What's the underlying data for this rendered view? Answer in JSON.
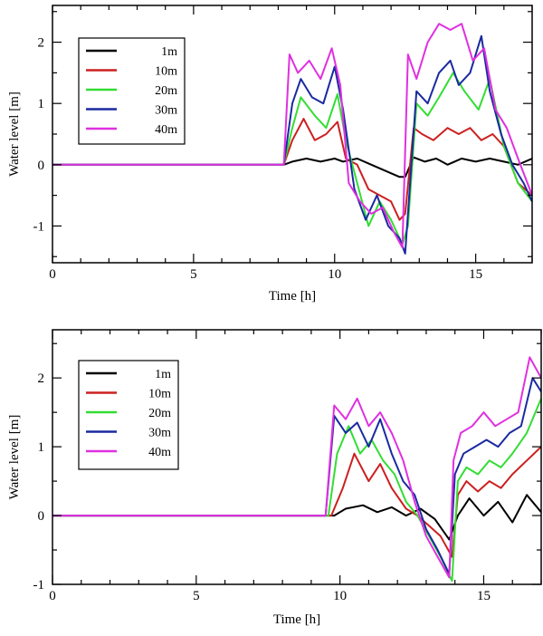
{
  "chart_data": [
    {
      "type": "line",
      "xlabel": "Time [h]",
      "ylabel": "Water level [m]",
      "xlim": [
        0,
        17
      ],
      "ylim": [
        -1.6,
        2.6
      ],
      "xticks": [
        0,
        5,
        10,
        15
      ],
      "xtick_labels": [
        "0",
        "5",
        "10",
        "15"
      ],
      "yticks": [
        -1,
        0,
        1,
        2
      ],
      "ytick_labels": [
        "-1",
        "0",
        "1",
        "2"
      ],
      "grid": false,
      "legend_position": "top-left",
      "series": [
        {
          "name": "1m",
          "color": "#000000",
          "x": [
            0,
            8.2,
            8.5,
            9,
            9.5,
            10,
            10.3,
            10.8,
            11.3,
            11.8,
            12.3,
            12.5,
            12.8,
            13.2,
            13.6,
            14,
            14.5,
            15,
            15.5,
            16,
            16.5,
            17
          ],
          "y": [
            0,
            0,
            0.05,
            0.1,
            0.05,
            0.1,
            0.05,
            0.1,
            0.0,
            -0.1,
            -0.2,
            -0.2,
            0.12,
            0.05,
            0.1,
            0.0,
            0.1,
            0.05,
            0.1,
            0.05,
            0.0,
            0.1
          ]
        },
        {
          "name": "10m",
          "color": "#cc2020",
          "x": [
            0,
            8.2,
            8.5,
            8.9,
            9.3,
            9.7,
            10.1,
            10.4,
            10.8,
            11.2,
            11.6,
            12,
            12.3,
            12.5,
            12.8,
            13.1,
            13.5,
            14,
            14.4,
            14.8,
            15.2,
            15.6,
            16,
            16.5,
            17
          ],
          "y": [
            0,
            0,
            0.4,
            0.75,
            0.4,
            0.5,
            0.7,
            0.1,
            0.0,
            -0.4,
            -0.5,
            -0.6,
            -0.9,
            -0.8,
            0.6,
            0.5,
            0.4,
            0.6,
            0.5,
            0.6,
            0.4,
            0.5,
            0.3,
            -0.3,
            -0.5
          ]
        },
        {
          "name": "20m",
          "color": "#33dd33",
          "x": [
            0,
            8.2,
            8.5,
            8.8,
            9.3,
            9.7,
            10.1,
            10.4,
            10.8,
            11.2,
            11.6,
            12,
            12.4,
            12.6,
            12.9,
            13.3,
            13.7,
            14.2,
            14.6,
            15.1,
            15.5,
            16,
            16.5,
            17
          ],
          "y": [
            0,
            0,
            0.6,
            1.1,
            0.8,
            0.6,
            1.15,
            0.4,
            -0.3,
            -1.0,
            -0.6,
            -0.9,
            -1.3,
            -1.0,
            1.0,
            0.8,
            1.1,
            1.5,
            1.2,
            0.9,
            1.4,
            0.3,
            -0.3,
            -0.6
          ]
        },
        {
          "name": "30m",
          "color": "#1a2aa0",
          "x": [
            0,
            8.2,
            8.5,
            8.8,
            9.2,
            9.6,
            10,
            10.3,
            10.7,
            11.1,
            11.5,
            11.9,
            12.3,
            12.5,
            12.9,
            13.3,
            13.7,
            14.1,
            14.4,
            14.8,
            15.2,
            15.5,
            15.9,
            16.3,
            16.7,
            17
          ],
          "y": [
            0,
            0,
            1.0,
            1.4,
            1.1,
            1.0,
            1.6,
            0.9,
            -0.4,
            -0.9,
            -0.5,
            -1.0,
            -1.2,
            -1.45,
            1.2,
            1.0,
            1.5,
            1.7,
            1.3,
            1.5,
            2.1,
            1.2,
            0.5,
            0.0,
            -0.3,
            -0.6
          ]
        },
        {
          "name": "40m",
          "color": "#e030e0",
          "x": [
            0,
            8.2,
            8.4,
            8.7,
            9.1,
            9.5,
            9.9,
            10.2,
            10.5,
            10.9,
            11.3,
            11.7,
            12.1,
            12.4,
            12.6,
            12.9,
            13.3,
            13.7,
            14.1,
            14.5,
            14.9,
            15.3,
            15.7,
            16.1,
            16.5,
            17
          ],
          "y": [
            0,
            0,
            1.8,
            1.5,
            1.7,
            1.4,
            1.9,
            1.3,
            -0.3,
            -0.6,
            -0.8,
            -0.7,
            -1.1,
            -1.35,
            1.8,
            1.4,
            2.0,
            2.3,
            2.2,
            2.3,
            1.7,
            1.9,
            0.9,
            0.6,
            0.1,
            -0.5
          ]
        }
      ]
    },
    {
      "type": "line",
      "xlabel": "Time [h]",
      "ylabel": "Water level [m]",
      "xlim": [
        0,
        17
      ],
      "ylim": [
        -1,
        2.7
      ],
      "xticks": [
        0,
        5,
        10,
        15
      ],
      "xtick_labels": [
        "0",
        "5",
        "10",
        "15"
      ],
      "yticks": [
        -1,
        0,
        1,
        2
      ],
      "ytick_labels": [
        "-1",
        "0",
        "1",
        "2"
      ],
      "grid": false,
      "legend_position": "top-left",
      "series": [
        {
          "name": "1m",
          "color": "#000000",
          "x": [
            0,
            9.8,
            10.2,
            10.8,
            11.3,
            11.8,
            12.3,
            12.8,
            13.3,
            13.8,
            14.1,
            14.5,
            15,
            15.5,
            16,
            16.5,
            17
          ],
          "y": [
            0,
            0,
            0.1,
            0.15,
            0.05,
            0.12,
            0.0,
            0.1,
            -0.05,
            -0.35,
            0.0,
            0.25,
            0.0,
            0.2,
            -0.1,
            0.3,
            0.05
          ]
        },
        {
          "name": "10m",
          "color": "#cc2020",
          "x": [
            0,
            9.7,
            10.1,
            10.5,
            11,
            11.4,
            11.8,
            12.3,
            12.7,
            13.1,
            13.5,
            13.9,
            14.1,
            14.4,
            14.8,
            15.2,
            15.6,
            16,
            16.5,
            17
          ],
          "y": [
            0,
            0,
            0.4,
            0.9,
            0.5,
            0.75,
            0.4,
            0.1,
            0.0,
            -0.15,
            -0.3,
            -0.6,
            0.3,
            0.5,
            0.35,
            0.5,
            0.4,
            0.6,
            0.8,
            1.0
          ]
        },
        {
          "name": "20m",
          "color": "#33dd33",
          "x": [
            0,
            9.6,
            9.9,
            10.3,
            10.7,
            11.1,
            11.5,
            11.9,
            12.3,
            12.7,
            13.1,
            13.5,
            13.9,
            14.1,
            14.4,
            14.8,
            15.2,
            15.6,
            16,
            16.5,
            17
          ],
          "y": [
            0,
            0,
            0.9,
            1.3,
            0.9,
            1.1,
            0.8,
            0.6,
            0.2,
            0.0,
            -0.3,
            -0.6,
            -0.95,
            0.5,
            0.7,
            0.6,
            0.8,
            0.7,
            0.9,
            1.2,
            1.7
          ]
        },
        {
          "name": "30m",
          "color": "#1a2aa0",
          "x": [
            0,
            9.5,
            9.8,
            10.2,
            10.6,
            11,
            11.4,
            11.8,
            12.2,
            12.6,
            13,
            13.4,
            13.8,
            14.0,
            14.3,
            14.7,
            15.1,
            15.5,
            15.9,
            16.3,
            16.7,
            17
          ],
          "y": [
            0,
            0,
            1.45,
            1.2,
            1.35,
            1.0,
            1.4,
            0.9,
            0.5,
            0.3,
            -0.2,
            -0.5,
            -0.85,
            0.6,
            0.9,
            1.0,
            1.1,
            1.0,
            1.2,
            1.3,
            2.0,
            1.8
          ]
        },
        {
          "name": "40m",
          "color": "#e030e0",
          "x": [
            0,
            9.5,
            9.8,
            10.2,
            10.6,
            11,
            11.4,
            11.8,
            12.2,
            12.6,
            13,
            13.4,
            13.8,
            13.95,
            14.2,
            14.6,
            15,
            15.4,
            15.8,
            16.2,
            16.6,
            17
          ],
          "y": [
            0,
            0,
            1.6,
            1.4,
            1.7,
            1.3,
            1.5,
            1.2,
            0.8,
            0.2,
            -0.3,
            -0.6,
            -0.9,
            0.8,
            1.2,
            1.3,
            1.5,
            1.3,
            1.4,
            1.5,
            2.3,
            2.0
          ]
        }
      ]
    }
  ]
}
